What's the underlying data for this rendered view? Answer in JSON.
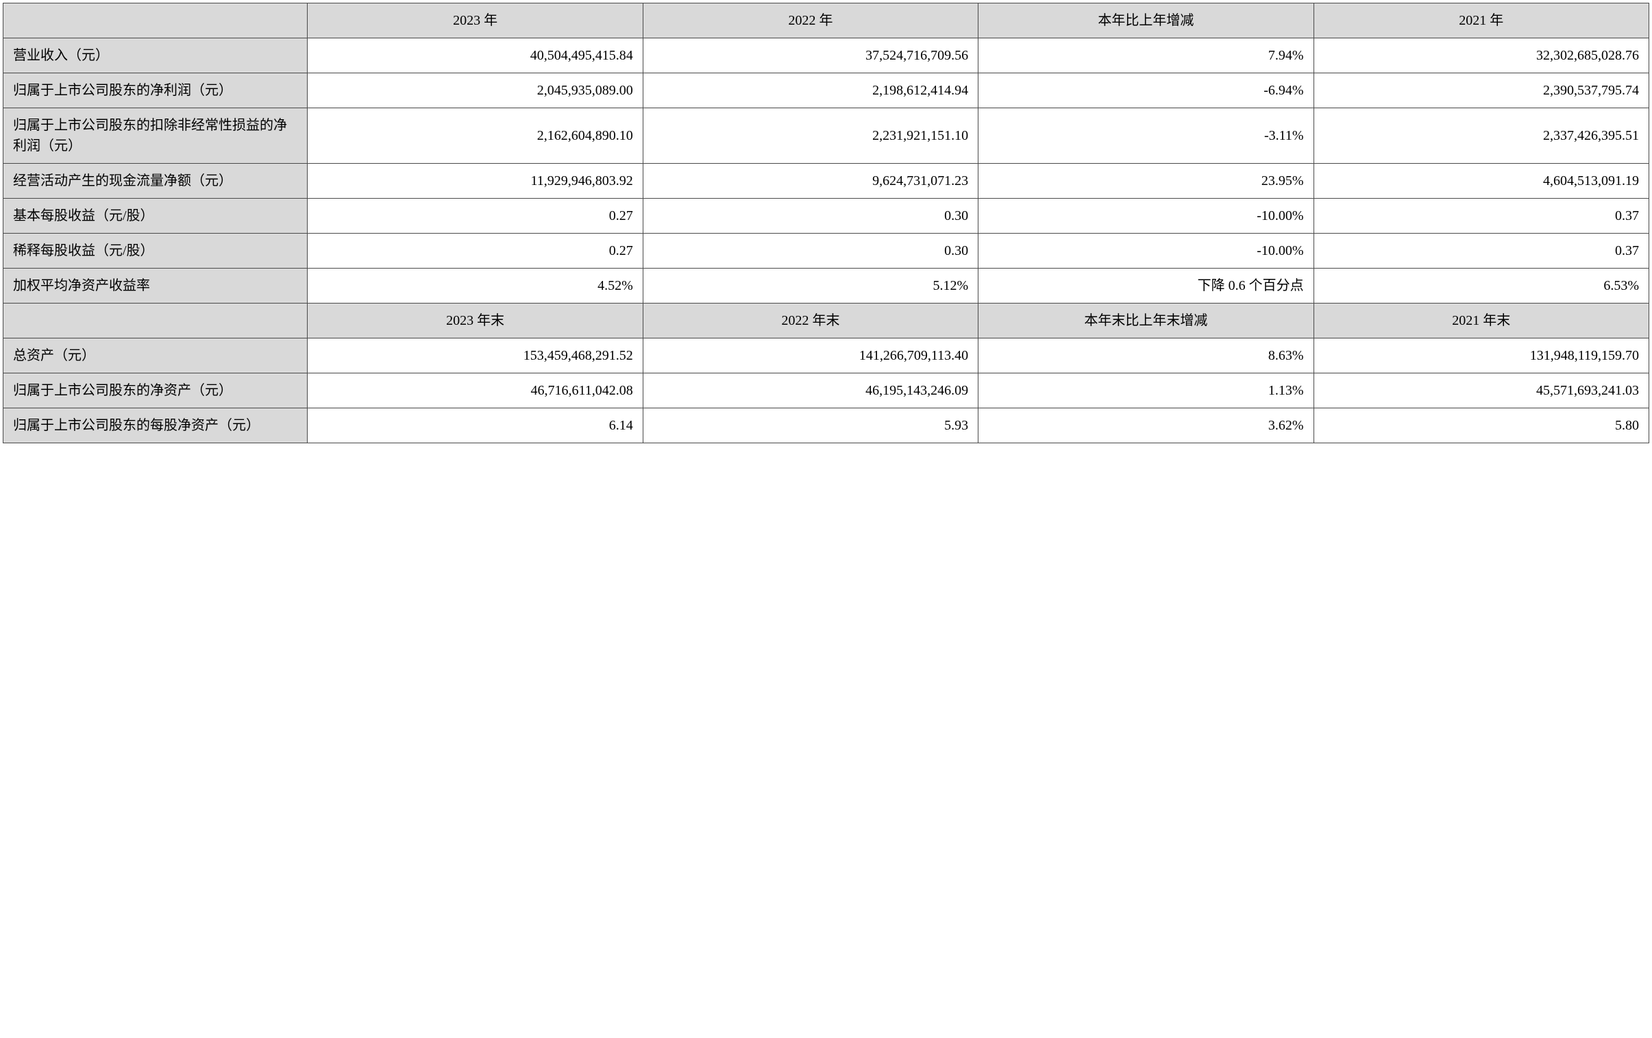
{
  "colors": {
    "header_bg": "#d9d9d9",
    "cell_bg": "#ffffff",
    "border": "#4a4a4a",
    "text": "#000000"
  },
  "typography": {
    "font_family": "SimSun",
    "cell_fontsize": 20,
    "line_height": 1.5
  },
  "layout": {
    "label_col_width_pct": 18.5,
    "data_col_width_pct": 20.375
  },
  "header1": {
    "blank": "",
    "col1": "2023 年",
    "col2": "2022 年",
    "col3": "本年比上年增减",
    "col4": "2021 年"
  },
  "rows1": [
    {
      "label": "营业收入（元）",
      "c1": "40,504,495,415.84",
      "c2": "37,524,716,709.56",
      "c3": "7.94%",
      "c4": "32,302,685,028.76"
    },
    {
      "label": "归属于上市公司股东的净利润（元）",
      "c1": "2,045,935,089.00",
      "c2": "2,198,612,414.94",
      "c3": "-6.94%",
      "c4": "2,390,537,795.74"
    },
    {
      "label": "归属于上市公司股东的扣除非经常性损益的净利润（元）",
      "c1": "2,162,604,890.10",
      "c2": "2,231,921,151.10",
      "c3": "-3.11%",
      "c4": "2,337,426,395.51"
    },
    {
      "label": "经营活动产生的现金流量净额（元）",
      "c1": "11,929,946,803.92",
      "c2": "9,624,731,071.23",
      "c3": "23.95%",
      "c4": "4,604,513,091.19"
    },
    {
      "label": "基本每股收益（元/股）",
      "c1": "0.27",
      "c2": "0.30",
      "c3": "-10.00%",
      "c4": "0.37"
    },
    {
      "label": "稀释每股收益（元/股）",
      "c1": "0.27",
      "c2": "0.30",
      "c3": "-10.00%",
      "c4": "0.37"
    },
    {
      "label": "加权平均净资产收益率",
      "c1": "4.52%",
      "c2": "5.12%",
      "c3": "下降 0.6 个百分点",
      "c4": "6.53%"
    }
  ],
  "header2": {
    "blank": "",
    "col1": "2023 年末",
    "col2": "2022 年末",
    "col3": "本年末比上年末增减",
    "col4": "2021 年末"
  },
  "rows2": [
    {
      "label": "总资产（元）",
      "c1": "153,459,468,291.52",
      "c2": "141,266,709,113.40",
      "c3": "8.63%",
      "c4": "131,948,119,159.70"
    },
    {
      "label": "归属于上市公司股东的净资产（元）",
      "c1": "46,716,611,042.08",
      "c2": "46,195,143,246.09",
      "c3": "1.13%",
      "c4": "45,571,693,241.03"
    },
    {
      "label": "归属于上市公司股东的每股净资产（元）",
      "c1": "6.14",
      "c2": "5.93",
      "c3": "3.62%",
      "c4": "5.80"
    }
  ]
}
